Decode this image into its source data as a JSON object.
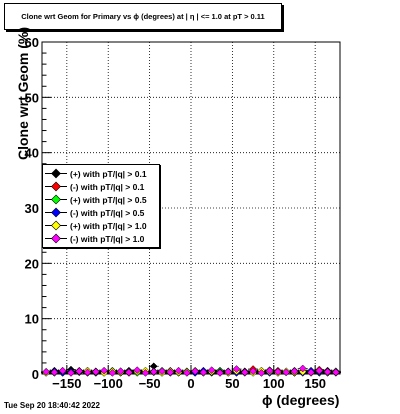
{
  "header": {
    "title": "Clone wrt Geom for Primary vs ϕ (degrees) at |  η | <= 1.0 at pT > 0.11"
  },
  "footer": {
    "timestamp": "Tue Sep 20 18:40:42 2022"
  },
  "chart_data": {
    "type": "scatter",
    "title": "Clone wrt Geom for Primary vs ϕ (degrees) at |  η | <= 1.0 at pT > 0.11",
    "xlabel": "ϕ (degrees)",
    "ylabel": "Clone wrt Geom (%)",
    "xlim": [
      -180,
      180
    ],
    "ylim": [
      0,
      60
    ],
    "x_ticks": [
      -150,
      -100,
      -50,
      0,
      50,
      100,
      150
    ],
    "x_tick_labels": [
      "−150",
      "−100",
      "−50",
      "0",
      "50",
      "100",
      "150"
    ],
    "y_ticks": [
      0,
      10,
      20,
      30,
      40,
      50,
      60
    ],
    "y_tick_labels": [
      "0",
      "10",
      "20",
      "30",
      "40",
      "50",
      "60"
    ],
    "grid": true,
    "legend_position": "middle-left",
    "series": [
      {
        "name": "(+) with pT/|q| > 0.1",
        "color": "#000000",
        "x": [
          -175,
          -165,
          -155,
          -145,
          -135,
          -125,
          -115,
          -105,
          -95,
          -85,
          -75,
          -65,
          -55,
          -45,
          -35,
          -25,
          -15,
          -5,
          5,
          15,
          25,
          35,
          45,
          55,
          65,
          75,
          85,
          95,
          105,
          115,
          125,
          135,
          145,
          155,
          165,
          175
        ],
        "values": [
          0.3,
          0.6,
          0.2,
          0.8,
          0.4,
          0.2,
          0.5,
          0.3,
          0.4,
          0.2,
          0.6,
          0.3,
          0.5,
          1.4,
          0.3,
          0.2,
          0.4,
          0.3,
          0.2,
          0.5,
          0.3,
          0.6,
          0.2,
          0.4,
          0.3,
          0.5,
          0.2,
          0.7,
          0.3,
          0.4,
          0.2,
          0.5,
          0.3,
          0.4,
          0.6,
          0.3
        ]
      },
      {
        "name": "(-) with pT/|q| > 0.1",
        "color": "#ff0000",
        "x": [
          -175,
          -165,
          -155,
          -145,
          -135,
          -125,
          -115,
          -105,
          -95,
          -85,
          -75,
          -65,
          -55,
          -45,
          -35,
          -25,
          -15,
          -5,
          5,
          15,
          25,
          35,
          45,
          55,
          65,
          75,
          85,
          95,
          105,
          115,
          125,
          135,
          145,
          155,
          165,
          175
        ],
        "values": [
          0.2,
          0.4,
          0.5,
          0.3,
          0.6,
          0.3,
          0.2,
          0.5,
          0.3,
          0.4,
          0.2,
          0.5,
          0.3,
          0.4,
          0.2,
          0.6,
          0.3,
          0.2,
          0.4,
          0.3,
          0.5,
          0.2,
          0.4,
          0.3,
          0.5,
          0.9,
          0.3,
          0.4,
          0.6,
          0.3,
          0.2,
          0.5,
          0.3,
          0.8,
          0.4,
          0.2
        ]
      },
      {
        "name": "(+) with pT/|q| > 0.5",
        "color": "#00ff00",
        "x": [
          -175,
          -165,
          -155,
          -145,
          -135,
          -125,
          -115,
          -105,
          -95,
          -85,
          -75,
          -65,
          -55,
          -45,
          -35,
          -25,
          -15,
          -5,
          5,
          15,
          25,
          35,
          45,
          55,
          65,
          75,
          85,
          95,
          105,
          115,
          125,
          135,
          145,
          155,
          165,
          175
        ],
        "values": [
          0.4,
          0.2,
          0.6,
          0.3,
          0.5,
          0.4,
          0.3,
          0.2,
          0.6,
          0.3,
          0.4,
          0.2,
          0.5,
          0.3,
          0.6,
          0.4,
          0.2,
          0.5,
          0.3,
          0.4,
          0.2,
          0.6,
          0.3,
          0.5,
          0.2,
          0.4,
          0.3,
          0.5,
          0.2,
          0.4,
          0.6,
          0.3,
          0.5,
          0.2,
          0.4,
          0.3
        ]
      },
      {
        "name": "(-) with pT/|q| > 0.5",
        "color": "#0000ff",
        "x": [
          -175,
          -165,
          -155,
          -145,
          -135,
          -125,
          -115,
          -105,
          -95,
          -85,
          -75,
          -65,
          -55,
          -45,
          -35,
          -25,
          -15,
          -5,
          5,
          15,
          25,
          35,
          45,
          55,
          65,
          75,
          85,
          95,
          105,
          115,
          125,
          135,
          145,
          155,
          165,
          175
        ],
        "values": [
          0.3,
          0.5,
          0.2,
          0.4,
          0.3,
          0.6,
          0.2,
          0.4,
          0.3,
          0.5,
          0.2,
          0.4,
          0.3,
          0.5,
          0.2,
          0.3,
          0.5,
          0.4,
          0.2,
          0.6,
          0.3,
          0.4,
          0.5,
          0.2,
          0.4,
          0.3,
          0.6,
          0.2,
          0.4,
          0.3,
          0.5,
          0.2,
          0.6,
          0.3,
          0.2,
          0.5
        ]
      },
      {
        "name": "(+) with pT/|q| > 1.0",
        "color": "#ffff00",
        "x": [
          -175,
          -165,
          -155,
          -145,
          -135,
          -125,
          -115,
          -105,
          -95,
          -85,
          -75,
          -65,
          -55,
          -45,
          -35,
          -25,
          -15,
          -5,
          5,
          15,
          25,
          35,
          45,
          55,
          65,
          75,
          85,
          95,
          105,
          115,
          125,
          135,
          145,
          155,
          165,
          175
        ],
        "values": [
          0.2,
          0.3,
          0.5,
          0.2,
          0.4,
          0.6,
          0.3,
          0.2,
          0.5,
          0.3,
          0.2,
          0.4,
          0.6,
          0.3,
          0.2,
          0.5,
          0.3,
          0.4,
          0.6,
          0.2,
          0.4,
          0.3,
          0.2,
          0.5,
          0.3,
          0.2,
          0.6,
          0.4,
          0.2,
          0.5,
          0.3,
          0.4,
          0.2,
          0.5,
          0.3,
          0.4
        ]
      },
      {
        "name": "(-) with pT/|q| > 1.0",
        "color": "#ff00ff",
        "x": [
          -175,
          -165,
          -155,
          -145,
          -135,
          -125,
          -115,
          -105,
          -95,
          -85,
          -75,
          -65,
          -55,
          -45,
          -35,
          -25,
          -15,
          -5,
          5,
          15,
          25,
          35,
          45,
          55,
          65,
          75,
          85,
          95,
          105,
          115,
          125,
          135,
          145,
          155,
          165,
          175
        ],
        "values": [
          0.4,
          0.3,
          0.6,
          0.2,
          0.5,
          0.3,
          0.4,
          0.6,
          0.2,
          0.5,
          0.3,
          0.7,
          0.2,
          0.4,
          0.5,
          0.3,
          0.6,
          0.2,
          0.5,
          0.3,
          0.7,
          0.2,
          0.4,
          0.9,
          0.3,
          0.5,
          0.2,
          0.6,
          0.4,
          0.3,
          0.5,
          1.0,
          0.3,
          0.6,
          0.4,
          0.3
        ]
      }
    ]
  }
}
